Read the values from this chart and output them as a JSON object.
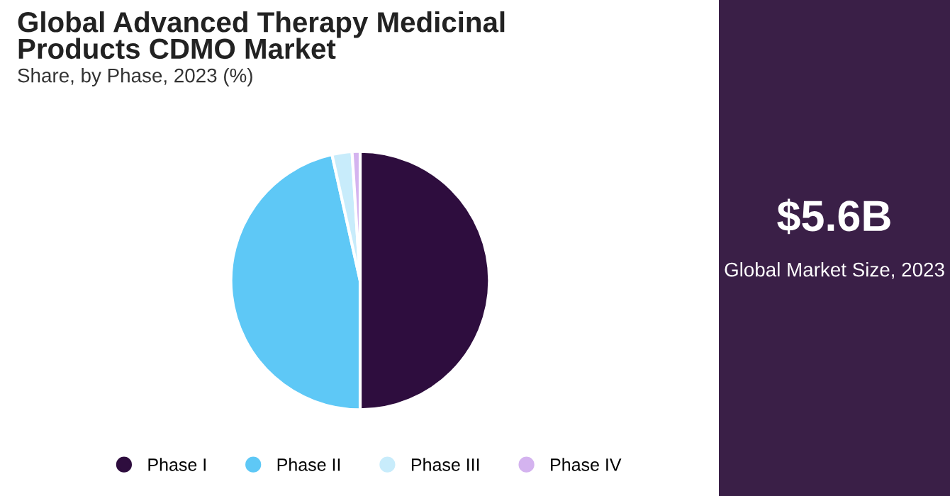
{
  "chart_data": [
    {
      "type": "pie",
      "title": "Global Advanced Therapy Medicinal Products CDMO Market",
      "subtitle": "Share, by Phase, 2023 (%)",
      "categories": [
        "Phase I",
        "Phase II",
        "Phase III",
        "Phase IV"
      ],
      "values": [
        50,
        46.5,
        2.5,
        1
      ],
      "colors": [
        "#2e0d3e",
        "#5ec8f6",
        "#c8ecfb",
        "#d4b3ef"
      ],
      "legend": "bottom"
    },
    {
      "type": "other",
      "title": "$5.6B",
      "annotations": [
        "Global Market Size, 2023"
      ]
    }
  ]
}
